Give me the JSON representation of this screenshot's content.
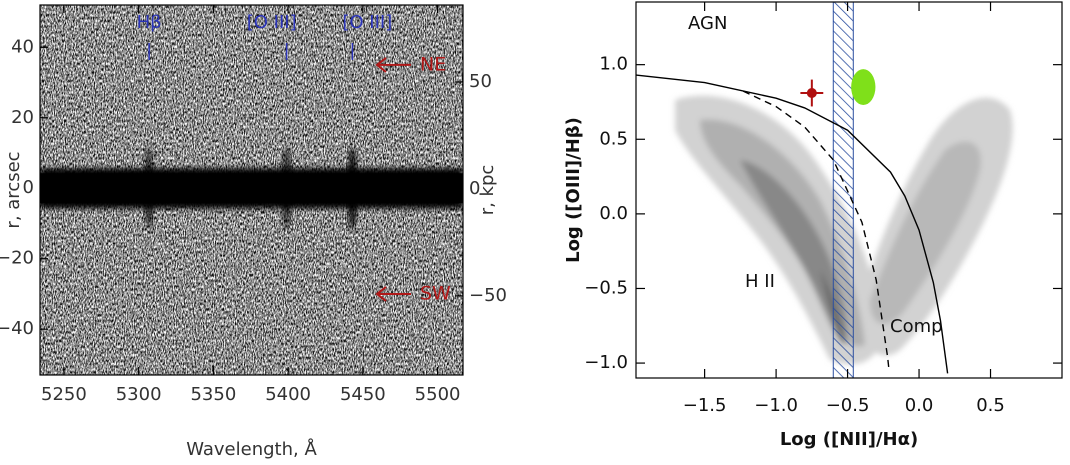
{
  "chart_data": [
    {
      "type": "image",
      "xlabel": "Wavelength, Å",
      "ylabel": "r, arcsec",
      "y2label": "r, kpc",
      "xlim": [
        5234,
        5517
      ],
      "ylim": [
        -53,
        52
      ],
      "y2lim": [
        -87,
        86
      ],
      "xticks": [
        5250,
        5300,
        5350,
        5400,
        5450,
        5500
      ],
      "yticks": [
        {
          "value": -40,
          "label": "−40"
        },
        {
          "value": -20,
          "label": "−20"
        },
        0,
        20,
        40
      ],
      "y2ticks": [
        {
          "value": -50,
          "label": "−50"
        },
        0,
        50
      ],
      "lines": [
        {
          "label": "Hβ",
          "x": 5307
        },
        {
          "label": "[O III]",
          "x": 5399
        },
        {
          "label": "[O III]",
          "x": 5443
        }
      ],
      "line_color": "#2b34b8",
      "arrows": [
        {
          "label": "NE",
          "y": 35
        },
        {
          "label": "SW",
          "y": -30
        }
      ],
      "arrow_color": "#b01818"
    },
    {
      "type": "scatter",
      "xlabel": "Log ([NII]/Hα)",
      "ylabel": "Log ([OIII]/Hβ)",
      "xlim": [
        -1.98,
        1.0
      ],
      "ylim": [
        -1.1,
        1.42
      ],
      "xticks": [
        {
          "value": -1.5,
          "label": "−1.5"
        },
        {
          "value": -1.0,
          "label": "−1.0"
        },
        {
          "value": -0.5,
          "label": "−0.5"
        },
        {
          "value": 0.0,
          "label": "0.0"
        },
        0.5
      ],
      "yticks": [
        {
          "value": -1.0,
          "label": "−1.0"
        },
        {
          "value": -0.5,
          "label": "−0.5"
        },
        {
          "value": 0.0,
          "label": "0.0"
        },
        0.5,
        {
          "value": 1.0,
          "label": "1.0"
        }
      ],
      "series": [
        {
          "style": "solid",
          "color": "#000000",
          "x": [
            -1.98,
            -1.5,
            -1.0,
            -0.8,
            -0.5,
            -0.2,
            -0.1,
            0.0,
            0.1,
            0.15,
            0.2
          ],
          "values": [
            0.93,
            0.88,
            0.775,
            0.71,
            0.561,
            0.28,
            0.12,
            -0.108,
            -0.459,
            -0.716,
            -1.069
          ]
        },
        {
          "style": "dashed",
          "color": "#000000",
          "x": [
            -1.23,
            -1.0,
            -0.8,
            -0.6,
            -0.4,
            -0.3,
            -0.22,
            -0.21
          ],
          "values": [
            0.823,
            0.719,
            0.582,
            0.362,
            -0.056,
            -0.443,
            -0.959,
            -1.046
          ]
        }
      ],
      "band": {
        "x": [
          -0.6,
          -0.46
        ],
        "color": "#2b4fa0"
      },
      "point": {
        "x": -0.75,
        "y": 0.81,
        "xerr": 0.08,
        "yerr": 0.09,
        "color": "#b01010"
      },
      "region": {
        "x": -0.39,
        "y": 0.85,
        "dx": 0.085,
        "dy": 0.12,
        "color": "#7fe01a"
      },
      "annotations": [
        "AGN",
        "H II",
        "Comp"
      ]
    }
  ]
}
